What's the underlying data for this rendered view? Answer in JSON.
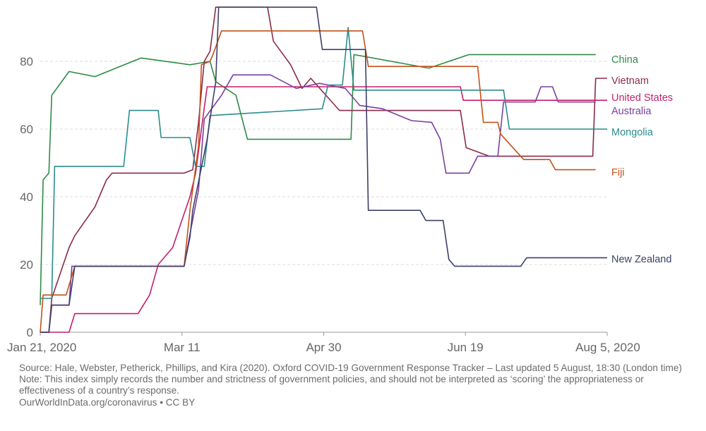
{
  "chart_data": {
    "type": "line",
    "grid": true,
    "legend": "right-end-labels",
    "ylim": [
      0,
      95
    ],
    "yticks": [
      0,
      20,
      40,
      60,
      80
    ],
    "xticks": [
      "Jan 21, 2020",
      "Mar 11",
      "Apr 30",
      "Jun 19",
      "Aug 5, 2020"
    ],
    "x_range": [
      "2020-01-21",
      "2020-08-05"
    ],
    "series": [
      {
        "name": "China",
        "color": "#2e8b46",
        "points": [
          [
            "2020-01-21",
            8
          ],
          [
            "2020-01-22",
            45
          ],
          [
            "2020-01-24",
            47
          ],
          [
            "2020-01-25",
            70
          ],
          [
            "2020-01-31",
            77
          ],
          [
            "2020-02-09",
            75.5
          ],
          [
            "2020-02-25",
            81
          ],
          [
            "2020-03-13",
            79
          ],
          [
            "2020-03-20",
            80
          ],
          [
            "2020-03-22",
            74
          ],
          [
            "2020-03-29",
            70
          ],
          [
            "2020-04-02",
            57
          ],
          [
            "2020-05-08",
            57
          ],
          [
            "2020-05-09",
            82
          ],
          [
            "2020-06-04",
            78
          ],
          [
            "2020-06-18",
            82
          ],
          [
            "2020-08-01",
            82
          ]
        ]
      },
      {
        "name": "Vietnam",
        "color": "#8b2a4a",
        "points": [
          [
            "2020-01-21",
            0
          ],
          [
            "2020-01-24",
            0
          ],
          [
            "2020-01-25",
            10
          ],
          [
            "2020-01-31",
            25
          ],
          [
            "2020-02-02",
            28.5
          ],
          [
            "2020-02-09",
            37
          ],
          [
            "2020-02-13",
            45
          ],
          [
            "2020-02-15",
            47
          ],
          [
            "2020-03-11",
            47
          ],
          [
            "2020-03-14",
            48
          ],
          [
            "2020-03-16",
            62
          ],
          [
            "2020-03-18",
            80
          ],
          [
            "2020-03-20",
            83
          ],
          [
            "2020-03-22",
            96
          ],
          [
            "2020-04-09",
            96
          ],
          [
            "2020-04-11",
            86
          ],
          [
            "2020-04-17",
            79
          ],
          [
            "2020-04-21",
            72
          ],
          [
            "2020-04-24",
            75
          ],
          [
            "2020-05-04",
            65.5
          ],
          [
            "2020-06-15",
            65.5
          ],
          [
            "2020-06-17",
            54.5
          ],
          [
            "2020-06-25",
            52
          ],
          [
            "2020-07-31",
            52
          ],
          [
            "2020-08-01",
            75
          ],
          [
            "2020-08-05",
            75
          ]
        ]
      },
      {
        "name": "United States",
        "color": "#c41f6b",
        "points": [
          [
            "2020-01-21",
            0
          ],
          [
            "2020-01-31",
            0
          ],
          [
            "2020-02-02",
            5.5
          ],
          [
            "2020-02-24",
            5.5
          ],
          [
            "2020-02-28",
            11
          ],
          [
            "2020-03-02",
            20
          ],
          [
            "2020-03-07",
            25
          ],
          [
            "2020-03-09",
            30
          ],
          [
            "2020-03-11",
            35
          ],
          [
            "2020-03-13",
            40
          ],
          [
            "2020-03-15",
            47
          ],
          [
            "2020-03-17",
            60
          ],
          [
            "2020-03-19",
            72.5
          ],
          [
            "2020-05-08",
            72.5
          ],
          [
            "2020-06-15",
            72.5
          ],
          [
            "2020-06-16",
            68.5
          ],
          [
            "2020-08-05",
            68.5
          ]
        ]
      },
      {
        "name": "Australia",
        "color": "#7b3fa0",
        "points": [
          [
            "2020-01-21",
            0
          ],
          [
            "2020-01-24",
            0
          ],
          [
            "2020-01-25",
            8
          ],
          [
            "2020-01-31",
            8
          ],
          [
            "2020-02-01",
            19.5
          ],
          [
            "2020-03-11",
            19.5
          ],
          [
            "2020-03-13",
            29
          ],
          [
            "2020-03-16",
            42
          ],
          [
            "2020-03-18",
            63
          ],
          [
            "2020-03-24",
            70
          ],
          [
            "2020-03-28",
            76
          ],
          [
            "2020-04-10",
            76
          ],
          [
            "2020-04-19",
            72
          ],
          [
            "2020-04-27",
            73.5
          ],
          [
            "2020-05-06",
            72
          ],
          [
            "2020-05-11",
            67
          ],
          [
            "2020-05-19",
            66
          ],
          [
            "2020-05-29",
            62.5
          ],
          [
            "2020-06-05",
            62
          ],
          [
            "2020-06-08",
            57
          ],
          [
            "2020-06-10",
            47
          ],
          [
            "2020-06-18",
            47
          ],
          [
            "2020-06-21",
            52
          ],
          [
            "2020-06-28",
            52
          ],
          [
            "2020-06-30",
            68
          ],
          [
            "2020-07-11",
            68
          ],
          [
            "2020-07-13",
            72.5
          ],
          [
            "2020-07-17",
            72.5
          ],
          [
            "2020-07-19",
            68
          ],
          [
            "2020-08-01",
            68
          ]
        ]
      },
      {
        "name": "Mongolia",
        "color": "#2a8c8c",
        "points": [
          [
            "2020-01-21",
            10
          ],
          [
            "2020-01-25",
            10
          ],
          [
            "2020-01-26",
            49
          ],
          [
            "2020-02-19",
            49
          ],
          [
            "2020-02-21",
            65.5
          ],
          [
            "2020-03-02",
            65.5
          ],
          [
            "2020-03-03",
            57.5
          ],
          [
            "2020-03-13",
            57.5
          ],
          [
            "2020-03-15",
            49
          ],
          [
            "2020-03-18",
            49
          ],
          [
            "2020-03-20",
            64
          ],
          [
            "2020-04-28",
            66
          ],
          [
            "2020-04-30",
            73
          ],
          [
            "2020-05-05",
            73
          ],
          [
            "2020-05-07",
            90
          ],
          [
            "2020-05-09",
            71.5
          ],
          [
            "2020-06-30",
            71.5
          ],
          [
            "2020-07-02",
            60
          ],
          [
            "2020-08-05",
            60
          ]
        ]
      },
      {
        "name": "Fiji",
        "color": "#c2521a",
        "points": [
          [
            "2020-01-21",
            0
          ],
          [
            "2020-01-22",
            11
          ],
          [
            "2020-01-30",
            11
          ],
          [
            "2020-02-02",
            19.5
          ],
          [
            "2020-03-11",
            19.5
          ],
          [
            "2020-03-13",
            36
          ],
          [
            "2020-03-16",
            55
          ],
          [
            "2020-03-17",
            79
          ],
          [
            "2020-03-20",
            80
          ],
          [
            "2020-03-21",
            82
          ],
          [
            "2020-03-24",
            89
          ],
          [
            "2020-05-12",
            89
          ],
          [
            "2020-05-14",
            78.5
          ],
          [
            "2020-06-21",
            78.5
          ],
          [
            "2020-06-23",
            62
          ],
          [
            "2020-06-28",
            62
          ],
          [
            "2020-06-29",
            58.5
          ],
          [
            "2020-07-07",
            51
          ],
          [
            "2020-07-16",
            51
          ],
          [
            "2020-07-18",
            48
          ],
          [
            "2020-08-01",
            48
          ]
        ]
      },
      {
        "name": "New Zealand",
        "color": "#3d4068",
        "points": [
          [
            "2020-01-21",
            0
          ],
          [
            "2020-01-24",
            0
          ],
          [
            "2020-01-25",
            8
          ],
          [
            "2020-01-31",
            8
          ],
          [
            "2020-02-02",
            19.5
          ],
          [
            "2020-03-11",
            19.5
          ],
          [
            "2020-03-13",
            28
          ],
          [
            "2020-03-14",
            36
          ],
          [
            "2020-03-19",
            57
          ],
          [
            "2020-03-20",
            63
          ],
          [
            "2020-03-22",
            74
          ],
          [
            "2020-03-23",
            96
          ],
          [
            "2020-04-26",
            96
          ],
          [
            "2020-04-28",
            83.5
          ],
          [
            "2020-05-13",
            83.5
          ],
          [
            "2020-05-14",
            36
          ],
          [
            "2020-06-01",
            36
          ],
          [
            "2020-06-03",
            33
          ],
          [
            "2020-06-09",
            33
          ],
          [
            "2020-06-11",
            21.5
          ],
          [
            "2020-06-13",
            19.5
          ],
          [
            "2020-07-06",
            19.5
          ],
          [
            "2020-07-08",
            22
          ],
          [
            "2020-08-05",
            22
          ]
        ]
      }
    ]
  },
  "footer": {
    "source": "Source: Hale, Webster, Petherick, Phillips, and Kira (2020). Oxford COVID-19 Government Response Tracker – Last updated 5 August, 18:30 (London time)",
    "note": "Note: This index simply records the number and strictness of government policies, and should not be interpreted as ‘scoring’ the appropriateness or effectiveness of a country’s response.",
    "credit": "OurWorldInData.org/coronavirus • CC BY"
  }
}
